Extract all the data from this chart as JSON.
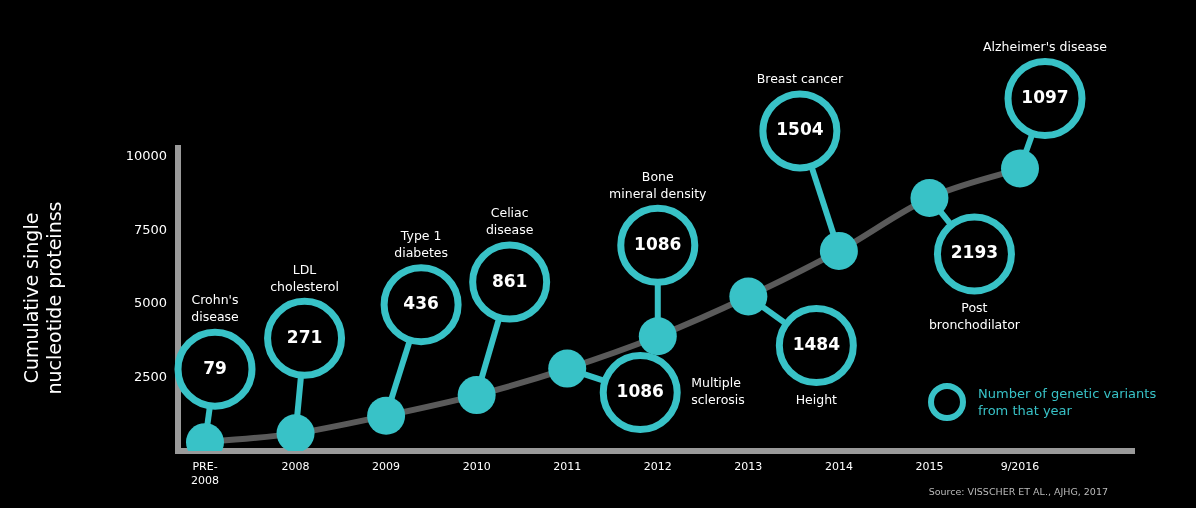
{
  "chart_data": {
    "type": "line",
    "ylabel": "Cumulative single nucleotide proteinss",
    "categories": [
      "PRE-2008",
      "2008",
      "2009",
      "2010",
      "2011",
      "2012",
      "2013",
      "2014",
      "2015",
      "9/2016"
    ],
    "series": [
      {
        "color": "#38c2c7",
        "values": [
          300,
          600,
          1200,
          1900,
          2800,
          3900,
          5250,
          6800,
          8600,
          9600
        ]
      }
    ],
    "ylim": [
      0,
      10400
    ],
    "yticks": [
      2500,
      5000,
      7500,
      10000
    ],
    "grid": false,
    "legend": false,
    "marker": "circle",
    "line_style": "solid",
    "annotations": [
      {
        "text": "79",
        "x": "PRE-2008",
        "y": 300
      },
      {
        "text": "271",
        "x": "2008",
        "y": 600
      },
      {
        "text": "436",
        "x": "2009",
        "y": 1200
      },
      {
        "text": "861",
        "x": "2010",
        "y": 1900
      },
      {
        "text": "1086",
        "x": "2011",
        "y": 2800
      },
      {
        "text": "1086",
        "x": "2012",
        "y": 3900
      },
      {
        "text": "1484",
        "x": "2013",
        "y": 5250
      },
      {
        "text": "1504",
        "x": "2014",
        "y": 6800
      },
      {
        "text": "2193",
        "x": "2015",
        "y": 8600
      },
      {
        "text": "1097",
        "x": "9/2016",
        "y": 9600
      },
      "Crohn's disease",
      "LDL cholesterol",
      "Type 1 diabetes",
      "Celiac disease",
      "Multiple sclerosis",
      "Bone mineral density",
      "Height",
      "Breast cancer",
      "Post bronchodilator",
      "Alzheimer's disease",
      "Number of genetic variants from that year",
      "Source: VISSCHER ET AL., AJHG, 2017"
    ]
  }
}
